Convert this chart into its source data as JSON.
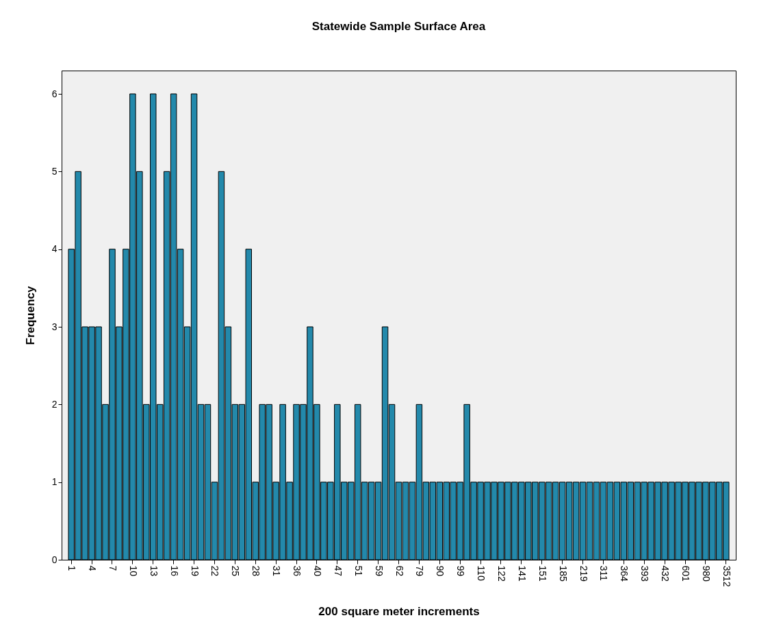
{
  "chart_data": {
    "type": "bar",
    "title": "Statewide Sample Surface Area",
    "xlabel": "200 square meter increments",
    "ylabel": "Frequency",
    "categories": [
      "1",
      null,
      null,
      "4",
      null,
      null,
      "7",
      null,
      null,
      "10",
      null,
      null,
      "13",
      null,
      null,
      "16",
      null,
      null,
      "19",
      null,
      null,
      "22",
      null,
      null,
      "25",
      null,
      null,
      "28",
      null,
      null,
      "31",
      null,
      null,
      "36",
      null,
      null,
      "40",
      null,
      null,
      "47",
      null,
      null,
      "51",
      null,
      null,
      "59",
      null,
      null,
      "62",
      null,
      null,
      "79",
      null,
      null,
      "90",
      null,
      null,
      "99",
      null,
      null,
      "110",
      null,
      null,
      "122",
      null,
      null,
      "141",
      null,
      null,
      "151",
      null,
      null,
      "185",
      null,
      null,
      "219",
      null,
      null,
      "311",
      null,
      null,
      "364",
      null,
      null,
      "393",
      null,
      null,
      "432",
      null,
      null,
      "601",
      null,
      null,
      "980",
      null,
      null,
      "3512"
    ],
    "values": [
      4,
      5,
      3,
      3,
      3,
      2,
      4,
      3,
      4,
      6,
      5,
      2,
      6,
      2,
      5,
      6,
      4,
      3,
      6,
      2,
      2,
      1,
      5,
      3,
      2,
      2,
      4,
      1,
      2,
      2,
      1,
      2,
      1,
      2,
      2,
      3,
      2,
      1,
      1,
      2,
      1,
      1,
      2,
      1,
      1,
      1,
      3,
      2,
      1,
      1,
      1,
      2,
      1,
      1,
      1,
      1,
      1,
      1,
      2,
      1,
      1,
      1,
      1,
      1,
      1,
      1,
      1,
      1,
      1,
      1,
      1,
      1,
      1,
      1,
      1,
      1,
      1,
      1,
      1,
      1,
      1,
      1,
      1,
      1,
      1,
      1,
      1,
      1,
      1,
      1,
      1,
      1,
      1,
      1,
      1,
      1,
      1
    ],
    "color": "#2389ab",
    "ylim": [
      0,
      6.3
    ],
    "yticks": [
      0,
      1,
      2,
      3,
      4,
      5,
      6
    ],
    "grid": false
  }
}
